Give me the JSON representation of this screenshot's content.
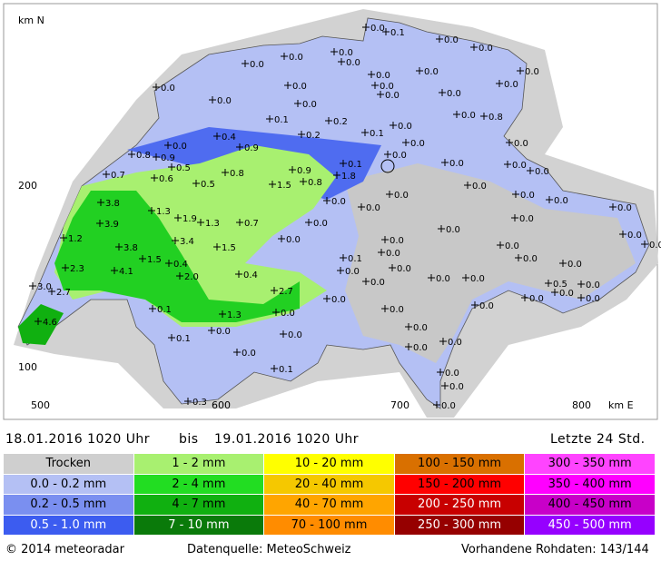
{
  "map": {
    "axis": {
      "north_label": "km N",
      "east_label": "km E",
      "y_labels": [
        "200",
        "100"
      ],
      "x_labels": [
        "500",
        "600",
        "700",
        "800"
      ]
    },
    "stations": [
      "0.0",
      "0.1",
      "0.0",
      "0.0",
      "0.0",
      "0.0",
      "0.0",
      "0.0",
      "0.0",
      "0.0",
      "0.0",
      "0.0",
      "0.0",
      "0.0",
      "0.0",
      "0.0",
      "0.0",
      "0.0",
      "0.0",
      "0.0",
      "0.8",
      "0.1",
      "0.2",
      "0.0",
      "0.1",
      "0.2",
      "0.4",
      "0.9",
      "0.0",
      "0.0",
      "0.0",
      "0.8",
      "0.9",
      "0.0",
      "0.0",
      "0.1",
      "0.0",
      "0.5",
      "0.9",
      "0.7",
      "0.0",
      "0.6",
      "0.8",
      "1.8",
      "1.5",
      "0.8",
      "0.5",
      "0.0",
      "0.0",
      "0.0",
      "0.0",
      "0.0",
      "0.0",
      "3.8",
      "1.3",
      "0.0",
      "0.0",
      "3.9",
      "1.9",
      "1.3",
      "0.7",
      "0.0",
      "0.0",
      "1.2",
      "3.4",
      "0.0",
      "0.0",
      "0.0",
      "0.0",
      "3.8",
      "1.5",
      "0.0",
      "0.0",
      "1.5",
      "0.0",
      "0.1",
      "0.4",
      "0.0",
      "2.3",
      "4.1",
      "0.0",
      "0.0",
      "0.0",
      "0.0",
      "0.4",
      "2.0",
      "0.0",
      "0.5",
      "0.0",
      "3.0",
      "0.0",
      "2.7",
      "2.7",
      "0.0",
      "0.0",
      "0.0",
      "0.1",
      "0.0",
      "0.0",
      "1.3",
      "0.0",
      "4.6",
      "0.0",
      "0.1",
      "0.0",
      "0.0",
      "0.0",
      "0.0",
      "0.0",
      "0.1",
      "0.0",
      "0.0",
      "0.3",
      "0.0"
    ]
  },
  "period": {
    "from": "18.01.2016  1020  Uhr",
    "between": "bis",
    "to": "19.01.2016  1020  Uhr",
    "span": "Letzte  24  Std."
  },
  "legend": [
    [
      "Trocken",
      "1 - 2 mm",
      "10 - 20 mm",
      "100 - 150 mm",
      "300 - 350 mm"
    ],
    [
      "0.0 - 0.2 mm",
      "2 - 4 mm",
      "20 - 40 mm",
      "150 - 200 mm",
      "350 - 400 mm"
    ],
    [
      "0.2 - 0.5 mm",
      "4 - 7 mm",
      "40 - 70 mm",
      "200 - 250 mm",
      "400 - 450 mm"
    ],
    [
      "0.5 - 1.0 mm",
      "7 - 10 mm",
      "70 - 100 mm",
      "250 - 300 mm",
      "450 - 500 mm"
    ]
  ],
  "footer": {
    "copyright": "2014  meteoradar",
    "source": "Datenquelle: MeteoSchweiz",
    "raw": "Vorhandene Rohdaten: 143/144"
  }
}
